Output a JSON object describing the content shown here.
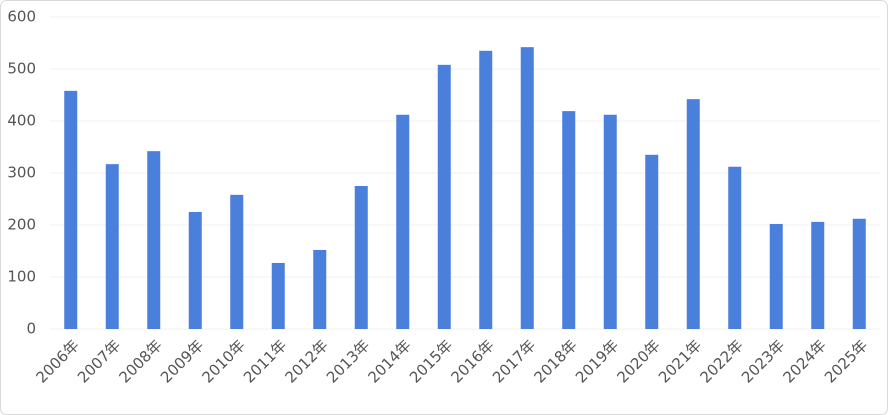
{
  "chart_data": {
    "type": "bar",
    "categories": [
      "2006年",
      "2007年",
      "2008年",
      "2009年",
      "2010年",
      "2011年",
      "2012年",
      "2013年",
      "2014年",
      "2015年",
      "2016年",
      "2017年",
      "2018年",
      "2019年",
      "2020年",
      "2021年",
      "2022年",
      "2023年",
      "2024年",
      "2025年"
    ],
    "values": [
      458,
      317,
      342,
      225,
      258,
      127,
      152,
      275,
      412,
      508,
      535,
      542,
      419,
      412,
      335,
      442,
      312,
      202,
      206,
      212
    ],
    "color": "#4a7fdc",
    "ylim": [
      0,
      600
    ],
    "yticks": [
      0,
      100,
      200,
      300,
      400,
      500,
      600
    ],
    "grid": true
  }
}
